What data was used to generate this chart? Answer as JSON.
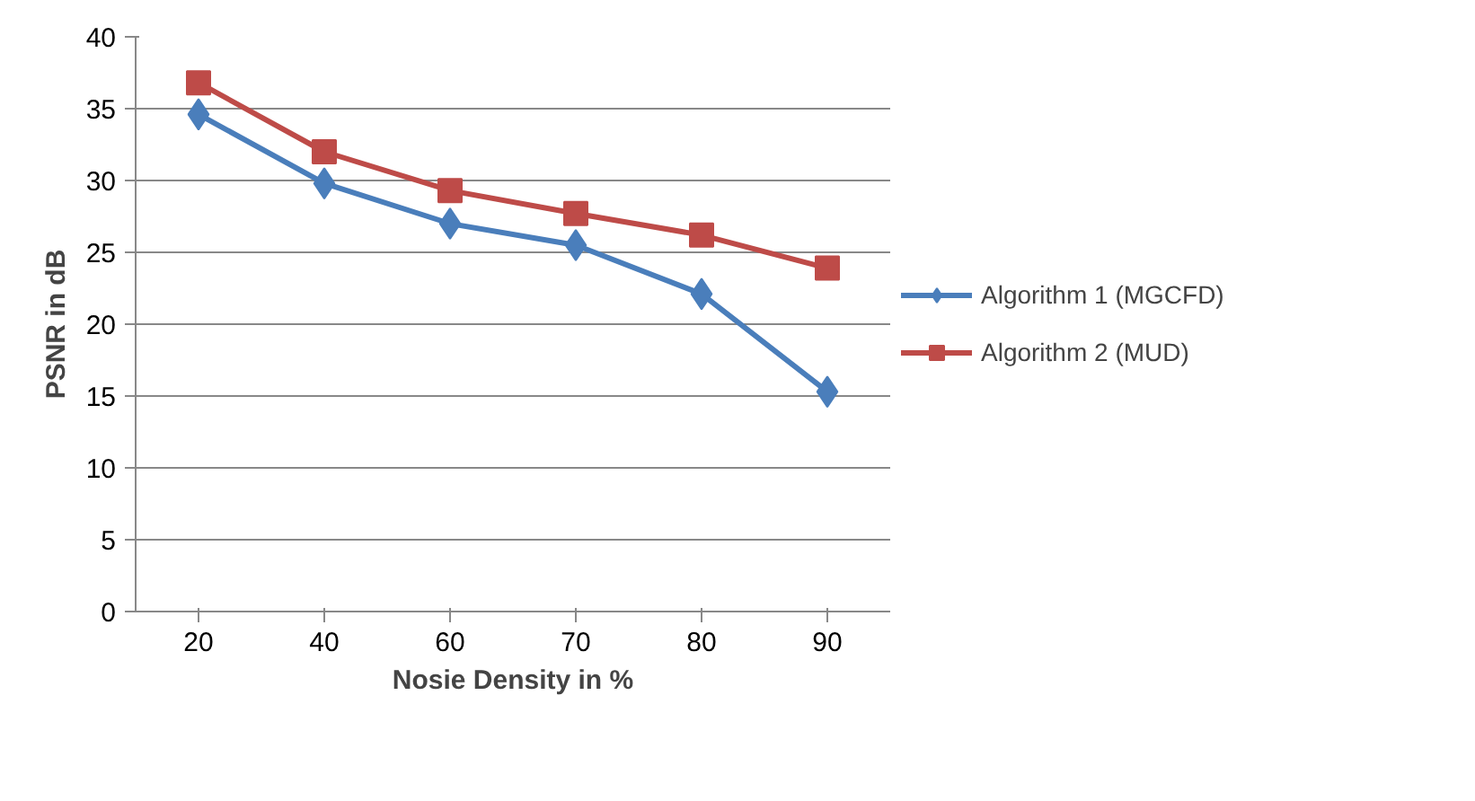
{
  "chart_data": {
    "type": "line",
    "xlabel": "Nosie Density in %",
    "ylabel": "PSNR in dB",
    "categories": [
      "20",
      "40",
      "60",
      "70",
      "80",
      "90"
    ],
    "ylim": [
      0,
      40
    ],
    "yticks": [
      0,
      5,
      10,
      15,
      20,
      25,
      30,
      35,
      40
    ],
    "grid": "y",
    "legend": "right",
    "line_style": "solid",
    "series": [
      {
        "name": "Algorithm 1 (MGCFD)",
        "color": "#4a7ebb",
        "marker": "diamond",
        "values": [
          34.6,
          29.8,
          27.0,
          25.5,
          22.1,
          15.3
        ]
      },
      {
        "name": "Algorithm 2 (MUD)",
        "color": "#be4b48",
        "marker": "square",
        "values": [
          36.8,
          32.0,
          29.3,
          27.7,
          26.2,
          23.9
        ]
      }
    ]
  }
}
